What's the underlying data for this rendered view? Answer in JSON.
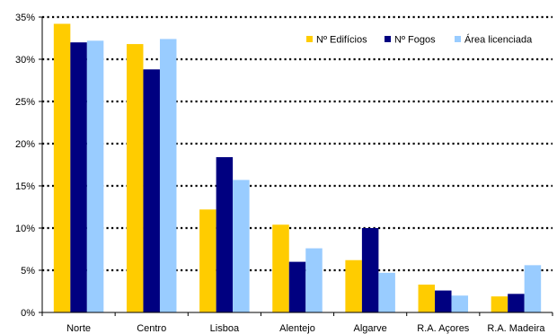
{
  "chart_data": {
    "type": "bar",
    "categories": [
      "Norte",
      "Centro",
      "Lisboa",
      "Alentejo",
      "Algarve",
      "R.A. Açores",
      "R.A. Madeira"
    ],
    "series": [
      {
        "name": "Nº Edifícios",
        "color": "#FFCC00",
        "values": [
          34.2,
          31.8,
          12.2,
          10.4,
          6.2,
          3.3,
          1.9
        ]
      },
      {
        "name": "Nº Fogos",
        "color": "#000080",
        "values": [
          32.0,
          28.8,
          18.4,
          6.0,
          10.0,
          2.6,
          2.2
        ]
      },
      {
        "name": "Área licenciada",
        "color": "#99CCFF",
        "values": [
          32.2,
          32.4,
          15.7,
          7.6,
          4.7,
          2.0,
          5.6
        ]
      }
    ],
    "yticks": [
      "0%",
      "5%",
      "10%",
      "15%",
      "20%",
      "25%",
      "30%",
      "35%"
    ],
    "ylim": [
      0,
      35
    ],
    "grid": true,
    "legend": "top-right",
    "title": "",
    "xlabel": "",
    "ylabel": ""
  }
}
